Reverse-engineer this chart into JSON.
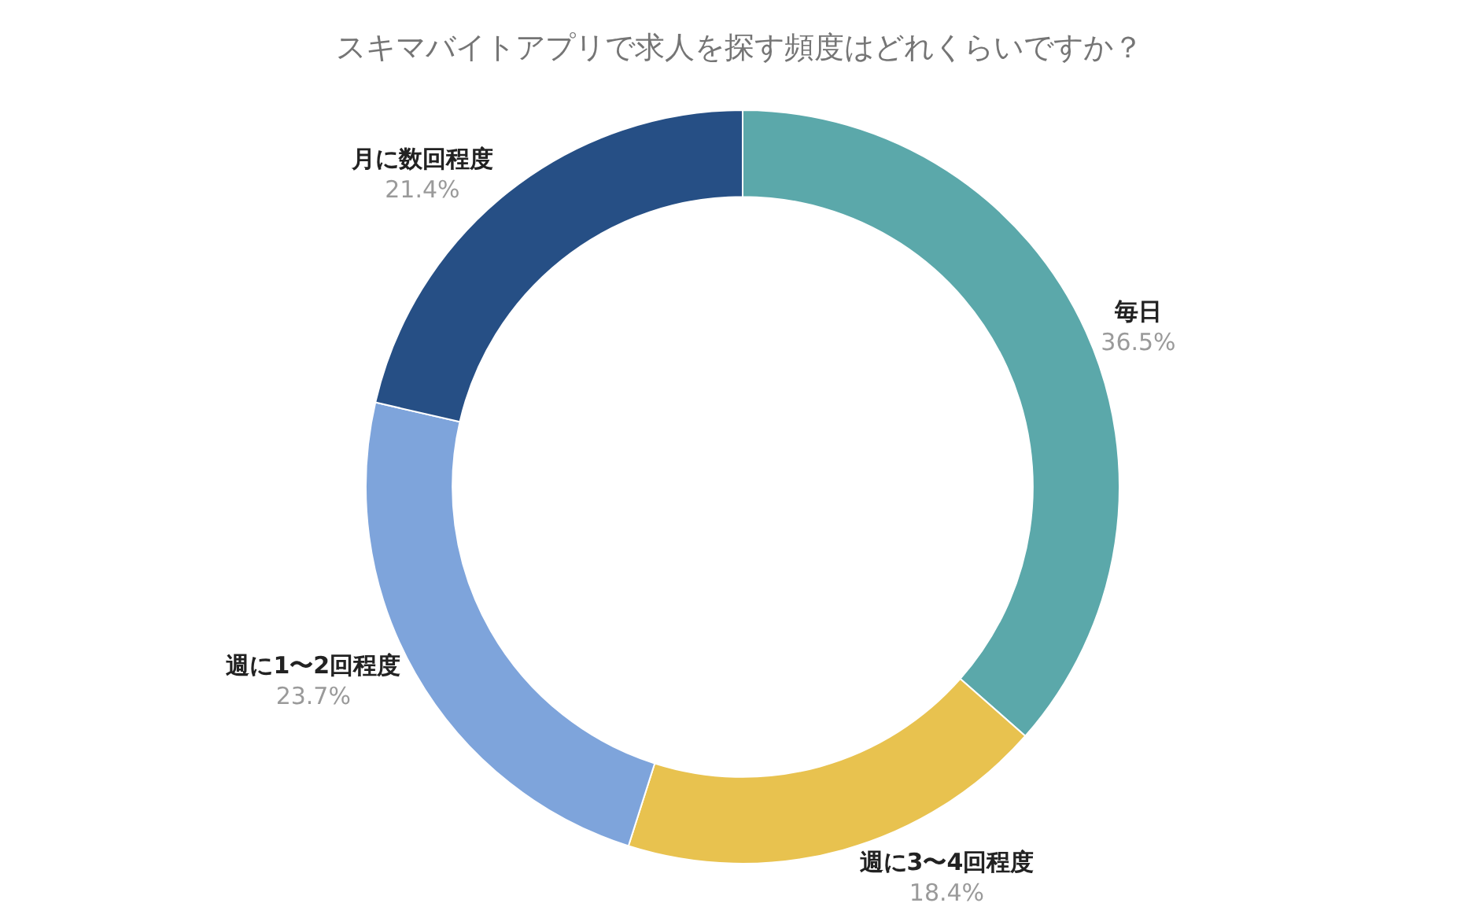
{
  "chart_data": {
    "type": "donut",
    "title": "スキマバイトアプリで求人を探す頻度はどれくらいですか？",
    "categories": [
      "毎日",
      "週に3〜4回程度",
      "週に1〜2回程度",
      "月に数回程度"
    ],
    "values": [
      36.5,
      18.4,
      23.7,
      21.4
    ],
    "value_labels": [
      "36.5%",
      "18.4%",
      "23.7%",
      "21.4%"
    ],
    "colors": [
      "#5ba8aa",
      "#e8c24f",
      "#7ea4db",
      "#264f85"
    ],
    "legend": false
  }
}
